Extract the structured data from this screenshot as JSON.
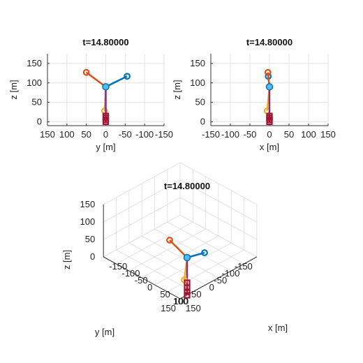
{
  "chart_data": [
    {
      "type": "line",
      "view": "side-yz",
      "title": "t=14.80000",
      "xlabel": "y [m]",
      "ylabel": "z [m]",
      "xlim": [
        150,
        -150
      ],
      "ylim": [
        -10,
        175
      ],
      "xticks": [
        "150",
        "100",
        "50",
        "0",
        "-50",
        "-100",
        "-150"
      ],
      "yticks": [
        "0",
        "50",
        "100",
        "150"
      ],
      "grid": true,
      "series": [
        {
          "color": "#0072BD",
          "marker": "circle",
          "x": [
            0,
            -55
          ],
          "y": [
            90,
            117
          ]
        },
        {
          "color": "#D95319",
          "marker": "circle",
          "x": [
            0,
            50
          ],
          "y": [
            90,
            127
          ]
        },
        {
          "color": "#EDB120",
          "marker": "circle",
          "x": [
            0,
            3
          ],
          "y": [
            90,
            28
          ]
        },
        {
          "color": "#7E2F8E",
          "marker": "square",
          "x": [
            0,
            0
          ],
          "y": [
            90,
            10
          ]
        },
        {
          "color": "#A2142F",
          "marker": "square",
          "x": [
            0,
            0,
            0,
            0
          ],
          "y": [
            0,
            5,
            10,
            15
          ]
        }
      ]
    },
    {
      "type": "line",
      "view": "side-xz",
      "title": "t=14.80000",
      "xlabel": "x [m]",
      "ylabel": "z [m]",
      "xlim": [
        -150,
        150
      ],
      "ylim": [
        -10,
        175
      ],
      "xticks": [
        "-150",
        "-100",
        "-50",
        "0",
        "50",
        "100",
        "150"
      ],
      "yticks": [
        "0",
        "50",
        "100",
        "150"
      ],
      "grid": true,
      "series": [
        {
          "color": "#0072BD",
          "marker": "circle",
          "x": [
            0,
            -3
          ],
          "y": [
            90,
            117
          ]
        },
        {
          "color": "#D95319",
          "marker": "circle",
          "x": [
            0,
            -4
          ],
          "y": [
            90,
            127
          ]
        },
        {
          "color": "#EDB120",
          "marker": "circle",
          "x": [
            0,
            -6
          ],
          "y": [
            90,
            28
          ]
        },
        {
          "color": "#7E2F8E",
          "marker": "square",
          "x": [
            0,
            0
          ],
          "y": [
            90,
            10
          ]
        },
        {
          "color": "#A2142F",
          "marker": "square",
          "x": [
            0,
            0,
            0,
            0
          ],
          "y": [
            0,
            5,
            10,
            15
          ]
        }
      ]
    },
    {
      "type": "line",
      "view": "3d",
      "title": "t=14.80000",
      "xlabel": "x [m]",
      "ylabel": "y [m]",
      "zlabel": "z [m]",
      "xlim": [
        -150,
        150
      ],
      "ylim": [
        -150,
        150
      ],
      "zlim": [
        0,
        150
      ],
      "xticks": [
        "-150",
        "-100",
        "-50",
        "0",
        "50",
        "100",
        "150"
      ],
      "yticks": [
        "150",
        "100",
        "50",
        "0",
        "-50",
        "-100",
        "-150"
      ],
      "zticks": [
        "0",
        "50",
        "100",
        "150"
      ],
      "grid": true,
      "series": [
        {
          "color": "#0072BD",
          "marker": "circle"
        },
        {
          "color": "#D95319",
          "marker": "circle"
        },
        {
          "color": "#EDB120",
          "marker": "circle"
        },
        {
          "color": "#7E2F8E",
          "marker": "square"
        },
        {
          "color": "#A2142F",
          "marker": "square"
        }
      ]
    }
  ]
}
